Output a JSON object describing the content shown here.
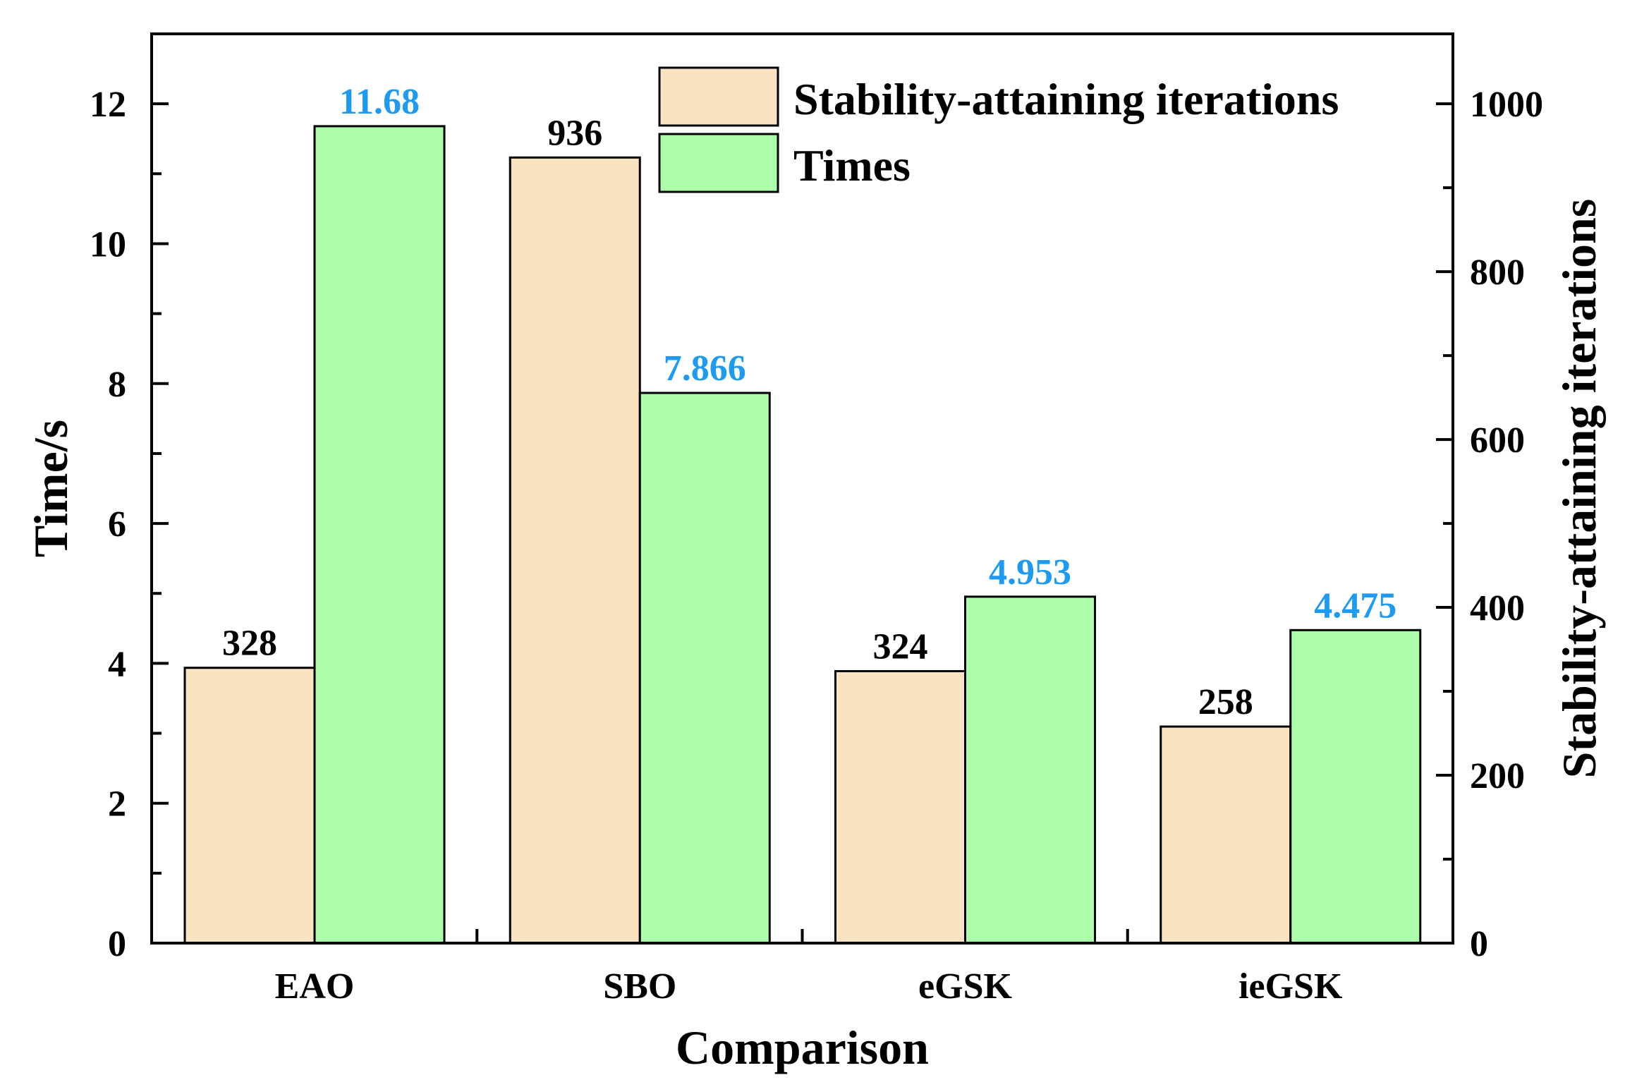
{
  "chart_data": {
    "type": "bar",
    "title": "",
    "xlabel": "Comparison",
    "ylabel": "Time/s",
    "y2label": "Stability-attaining iterations",
    "categories": [
      "EAO",
      "SBO",
      "eGSK",
      "ieGSK"
    ],
    "ylim": [
      0,
      13
    ],
    "y2lim": [
      0,
      1083.33
    ],
    "yticks": [
      "0",
      "2",
      "4",
      "6",
      "8",
      "10",
      "12"
    ],
    "y2ticks": [
      "0",
      "200",
      "400",
      "600",
      "800",
      "1000"
    ],
    "grid": false,
    "legend_position": "top-center",
    "series": [
      {
        "name": "Stability-attaining iterations",
        "axis": "right",
        "color": "#FAE3C0",
        "label_color": "#000000",
        "values": [
          328,
          936,
          324,
          258
        ],
        "labels": [
          "328",
          "936",
          "324",
          "258"
        ]
      },
      {
        "name": "Times",
        "axis": "left",
        "color": "#ADFEAB",
        "label_color": "#1E9BF0",
        "values": [
          11.68,
          7.866,
          4.953,
          4.475
        ],
        "labels": [
          "11.68",
          "7.866",
          "4.953",
          "4.475"
        ]
      }
    ]
  }
}
